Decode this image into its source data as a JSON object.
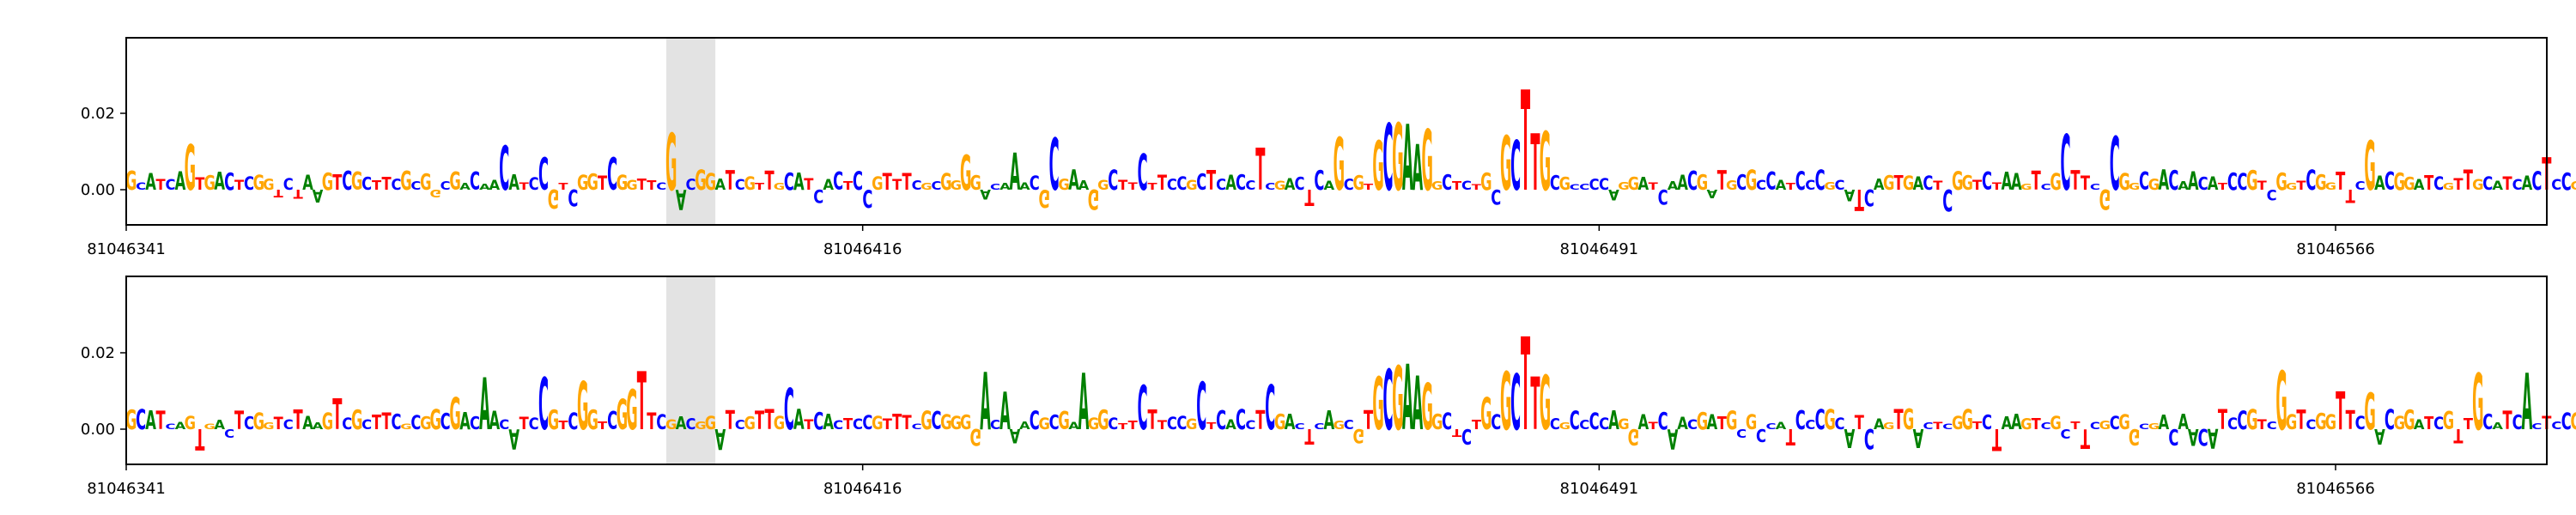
{
  "chart_data": [
    {
      "type": "sequence-logo",
      "panel": "top",
      "x_ticks": [
        81046341,
        81046416,
        81046491,
        81046566
      ],
      "y_ticks": [
        0.0,
        0.02
      ],
      "y_tick_labels": [
        "0.00",
        "0.02"
      ],
      "ylim": [
        -0.01,
        0.039
      ],
      "highlight_x": [
        81046396,
        81046401
      ],
      "motif": "GCGAAG",
      "motif_x": 81046468,
      "peak_value": 0.027,
      "peak_x": 81046483
    },
    {
      "type": "sequence-logo",
      "panel": "bottom",
      "x_ticks": [
        81046341,
        81046416,
        81046491,
        81046566
      ],
      "y_ticks": [
        0.0,
        0.02
      ],
      "y_tick_labels": [
        "0.00",
        "0.02"
      ],
      "ylim": [
        -0.01,
        0.039
      ],
      "highlight_x": [
        81046396,
        81046401
      ],
      "motif": "GCGAAG",
      "motif_x": 81046468,
      "peak_value": 0.025,
      "peak_x": 81046483
    }
  ],
  "base_colors": {
    "A": "#008000",
    "C": "#0000ff",
    "G": "#ffa500",
    "T": "#ff0000"
  },
  "sequence": "GCATCAGTGACTCGGTCTAAGTCGCTTCGCGGCGACAACATCCGTCGGTCGGTTCGACGGATCGTTGCATCACTCCGTTTCGCGGGGACAAACGCGAAGGCTTCTTCCGCTCACCTCGACTCAGCGTTGTTCTGCTCTGCGCTTGCGCCCCAGGATCAACGATGCGCCATCCC",
  "tracks": [
    {
      "scale": 1.0,
      "seed": 11,
      "extra_c": 0
    },
    {
      "scale": 1.0,
      "seed": 29,
      "extra_c": 1
    }
  ]
}
